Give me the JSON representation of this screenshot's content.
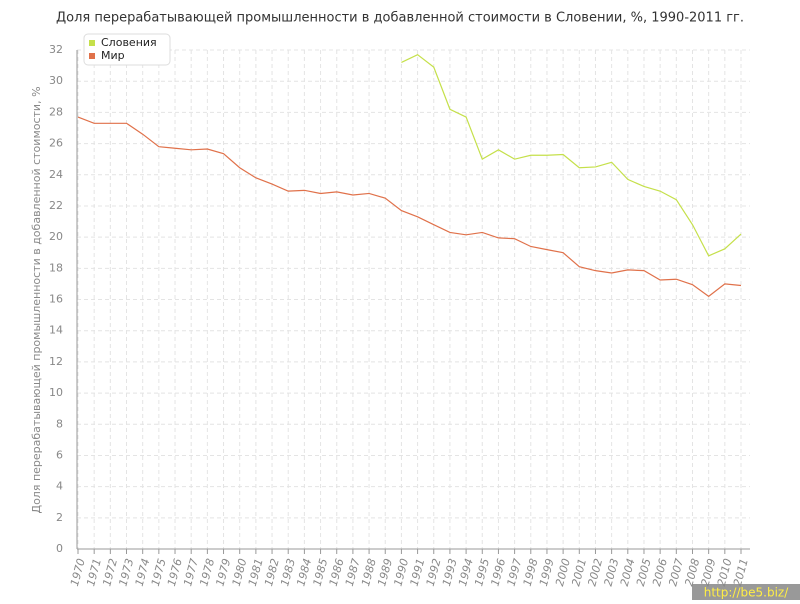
{
  "chart_data": {
    "type": "line",
    "title": "Доля перерабатывающей промышленности в добавленной стоимости в Словении, %, 1990-2011 гг.",
    "y_label": "Доля перерабатывающей промышленности в добавленной стоимости, %",
    "categories": [
      "1970",
      "1971",
      "1972",
      "1973",
      "1974",
      "1975",
      "1976",
      "1977",
      "1978",
      "1979",
      "1980",
      "1981",
      "1982",
      "1983",
      "1984",
      "1985",
      "1986",
      "1987",
      "1988",
      "1989",
      "1990",
      "1991",
      "1992",
      "1993",
      "1994",
      "1995",
      "1996",
      "1997",
      "1998",
      "1999",
      "2000",
      "2001",
      "2002",
      "2003",
      "2004",
      "2005",
      "2006",
      "2007",
      "2008",
      "2009",
      "2010",
      "2011"
    ],
    "series": [
      {
        "name": "Словения",
        "color": "#c5e04a",
        "values": [
          null,
          null,
          null,
          null,
          null,
          null,
          null,
          null,
          null,
          null,
          null,
          null,
          null,
          null,
          null,
          null,
          null,
          null,
          null,
          null,
          31.2,
          31.7,
          30.9,
          28.2,
          27.7,
          25.0,
          25.6,
          25.0,
          25.25,
          25.25,
          25.3,
          24.45,
          24.5,
          24.8,
          23.7,
          23.25,
          22.95,
          22.4,
          20.8,
          18.8,
          19.25,
          20.2
        ]
      },
      {
        "name": "Мир",
        "color": "#e0714a",
        "values": [
          27.7,
          27.3,
          27.3,
          27.3,
          26.6,
          25.8,
          25.7,
          25.6,
          25.65,
          25.35,
          24.45,
          23.8,
          23.4,
          22.95,
          23.0,
          22.8,
          22.9,
          22.7,
          22.8,
          22.5,
          21.7,
          21.3,
          20.8,
          20.3,
          20.15,
          20.3,
          19.95,
          19.9,
          19.4,
          19.2,
          19.0,
          18.1,
          17.85,
          17.7,
          17.9,
          17.85,
          17.25,
          17.3,
          16.95,
          16.2,
          17.0,
          16.9
        ]
      }
    ],
    "ylim": [
      0,
      32
    ],
    "yticks": [
      0,
      2,
      4,
      6,
      8,
      10,
      12,
      14,
      16,
      18,
      20,
      22,
      24,
      26,
      28,
      30,
      32
    ],
    "grid": true,
    "legend": "top-left",
    "watermark": "http://be5.biz/"
  }
}
